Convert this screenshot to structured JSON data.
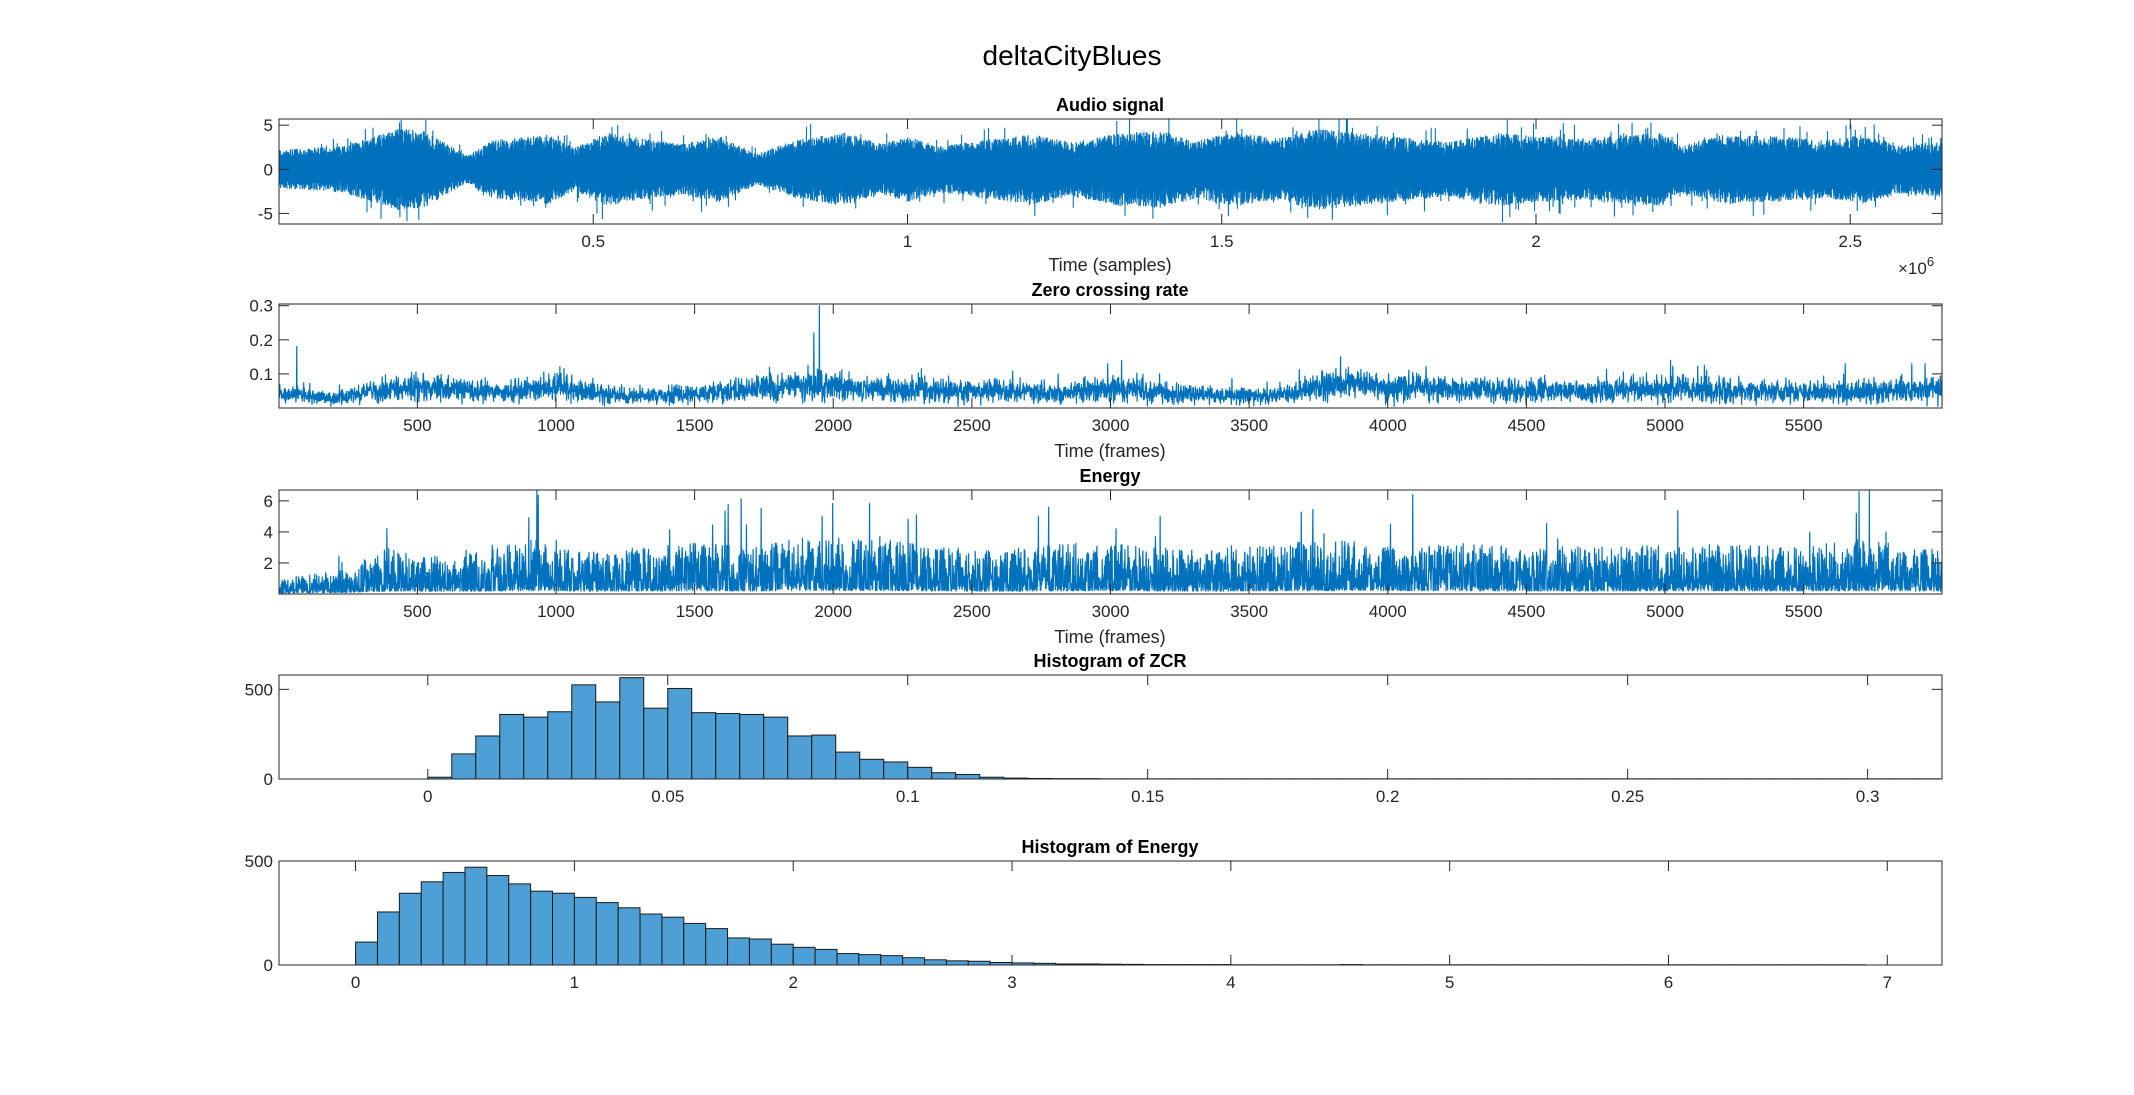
{
  "figure": {
    "title": "deltaCityBlues"
  },
  "colors": {
    "line": "#0072bd",
    "bar_fill": "#4d9fd6",
    "bar_edge": "#1a1a1a",
    "axes": "#262626"
  },
  "chart_data": [
    {
      "id": "audio",
      "type": "line",
      "title": "Audio signal",
      "xlabel": "Time (samples)",
      "ylabel": "",
      "xlim": [
        1,
        2646000
      ],
      "ylim": [
        -6.2,
        5.7
      ],
      "xticks": [
        500000,
        1000000,
        1500000,
        2000000,
        2500000
      ],
      "xtick_labels": [
        "0.5",
        "1",
        "1.5",
        "2",
        "2.5"
      ],
      "x_exponent": "×10",
      "x_exponent_power": "6",
      "yticks": [
        -5,
        0,
        5
      ],
      "ytick_labels": [
        "-5",
        "0",
        "5"
      ],
      "envelope": {
        "x": [
          0,
          100000,
          190000,
          230000,
          300000,
          340000,
          430000,
          470000,
          520000,
          640000,
          700000,
          760000,
          820000,
          900000,
          960000,
          1000000,
          1050000,
          1120000,
          1200000,
          1260000,
          1340000,
          1400000,
          1460000,
          1520000,
          1590000,
          1650000,
          1720000,
          1800000,
          1860000,
          1940000,
          2000000,
          2080000,
          2150000,
          2200000,
          2230000,
          2300000,
          2380000,
          2460000,
          2520000,
          2580000,
          2646000
        ],
        "amplitude": [
          2.0,
          2.4,
          4.2,
          4.0,
          1.4,
          3.0,
          3.6,
          2.2,
          3.8,
          2.6,
          3.4,
          1.6,
          3.0,
          3.8,
          2.6,
          3.4,
          2.4,
          3.0,
          3.6,
          2.8,
          3.8,
          4.0,
          3.0,
          3.8,
          3.2,
          4.2,
          3.8,
          3.2,
          2.8,
          3.8,
          3.4,
          3.2,
          3.6,
          3.8,
          2.4,
          3.6,
          3.4,
          3.0,
          3.6,
          2.6,
          2.8
        ]
      }
    },
    {
      "id": "zcr",
      "type": "line",
      "title": "Zero crossing rate",
      "xlabel": "Time (frames)",
      "ylabel": "",
      "xlim": [
        1,
        5999
      ],
      "ylim": [
        0,
        0.305
      ],
      "xticks": [
        500,
        1000,
        1500,
        2000,
        2500,
        3000,
        3500,
        4000,
        4500,
        5000,
        5500
      ],
      "xtick_labels": [
        "500",
        "1000",
        "1500",
        "2000",
        "2500",
        "3000",
        "3500",
        "4000",
        "4500",
        "5000",
        "5500"
      ],
      "yticks": [
        0.1,
        0.2,
        0.3
      ],
      "ytick_labels": [
        "0.1",
        "0.2",
        "0.3"
      ],
      "profile": {
        "x": [
          0,
          200,
          500,
          800,
          1000,
          1250,
          1500,
          1750,
          1950,
          2200,
          2500,
          2800,
          3000,
          3300,
          3600,
          3800,
          4000,
          4300,
          4600,
          5000,
          5300,
          5600,
          5999
        ],
        "level": [
          0.04,
          0.03,
          0.06,
          0.045,
          0.06,
          0.035,
          0.04,
          0.06,
          0.065,
          0.055,
          0.05,
          0.045,
          0.055,
          0.04,
          0.035,
          0.07,
          0.06,
          0.055,
          0.05,
          0.055,
          0.05,
          0.045,
          0.055
        ]
      },
      "peaks": [
        {
          "x": 65,
          "y": 0.18
        },
        {
          "x": 1950,
          "y": 0.3
        },
        {
          "x": 1930,
          "y": 0.22
        },
        {
          "x": 2990,
          "y": 0.13
        },
        {
          "x": 3040,
          "y": 0.14
        },
        {
          "x": 3830,
          "y": 0.15
        },
        {
          "x": 5020,
          "y": 0.14
        },
        {
          "x": 5650,
          "y": 0.13
        },
        {
          "x": 5890,
          "y": 0.13
        }
      ]
    },
    {
      "id": "energy",
      "type": "line",
      "title": "Energy",
      "xlabel": "Time (frames)",
      "ylabel": "",
      "xlim": [
        1,
        5999
      ],
      "ylim": [
        0,
        6.7
      ],
      "xticks": [
        500,
        1000,
        1500,
        2000,
        2500,
        3000,
        3500,
        4000,
        4500,
        5000,
        5500
      ],
      "xtick_labels": [
        "500",
        "1000",
        "1500",
        "2000",
        "2500",
        "3000",
        "3500",
        "4000",
        "4500",
        "5000",
        "5500"
      ],
      "yticks": [
        2,
        4,
        6
      ],
      "ytick_labels": [
        "2",
        "4",
        "6"
      ],
      "profile": {
        "x": [
          0,
          250,
          400,
          600,
          900,
          1200,
          1500,
          1700,
          1950,
          2300,
          2600,
          3000,
          3300,
          3600,
          3900,
          4100,
          4400,
          4800,
          5200,
          5500,
          5700,
          5999
        ],
        "level": [
          0.4,
          0.7,
          1.3,
          1.1,
          1.5,
          1.2,
          1.4,
          1.3,
          1.6,
          1.4,
          1.2,
          1.5,
          1.2,
          1.4,
          1.5,
          1.5,
          1.3,
          1.3,
          1.4,
          1.3,
          1.5,
          1.2
        ]
      },
      "peaks": [
        {
          "x": 1960,
          "y": 5.0
        },
        {
          "x": 2270,
          "y": 4.8
        },
        {
          "x": 2300,
          "y": 5.1
        },
        {
          "x": 3020,
          "y": 4.2
        },
        {
          "x": 4090,
          "y": 6.4
        },
        {
          "x": 4010,
          "y": 4.5
        },
        {
          "x": 5700,
          "y": 6.6
        },
        {
          "x": 5690,
          "y": 5.2
        },
        {
          "x": 390,
          "y": 4.2
        }
      ]
    },
    {
      "id": "hist_zcr",
      "type": "bar",
      "title": "Histogram of ZCR",
      "xlabel": "",
      "ylabel": "",
      "xlim": [
        -0.031,
        0.3155
      ],
      "ylim": [
        0,
        580
      ],
      "xticks": [
        0,
        0.05,
        0.1,
        0.15,
        0.2,
        0.25,
        0.3
      ],
      "xtick_labels": [
        "0",
        "0.05",
        "0.1",
        "0.15",
        "0.2",
        "0.25",
        "0.3"
      ],
      "yticks": [
        0,
        500
      ],
      "ytick_labels": [
        "0",
        "500"
      ],
      "bin_start": 0,
      "bin_width": 0.005,
      "counts": [
        10,
        140,
        240,
        360,
        345,
        375,
        525,
        430,
        565,
        395,
        505,
        370,
        365,
        360,
        345,
        240,
        245,
        150,
        110,
        95,
        65,
        35,
        25,
        10,
        5,
        3,
        2,
        2,
        1,
        1,
        1,
        1,
        1,
        1,
        1,
        1,
        1,
        1,
        1,
        1,
        1,
        1,
        1,
        1,
        1,
        1,
        1,
        1,
        1,
        1,
        1,
        1,
        1,
        1,
        1,
        1,
        1,
        1,
        1,
        1,
        1,
        1,
        1
      ]
    },
    {
      "id": "hist_energy",
      "type": "bar",
      "title": "Histogram of Energy",
      "xlabel": "",
      "ylabel": "",
      "xlim": [
        -0.35,
        7.25
      ],
      "ylim": [
        0,
        500
      ],
      "xticks": [
        0,
        1,
        2,
        3,
        4,
        5,
        6,
        7
      ],
      "xtick_labels": [
        "0",
        "1",
        "2",
        "3",
        "4",
        "5",
        "6",
        "7"
      ],
      "yticks": [
        0,
        500
      ],
      "ytick_labels": [
        "0",
        "500"
      ],
      "bin_start": 0,
      "bin_width": 0.1,
      "counts": [
        110,
        255,
        345,
        400,
        445,
        470,
        430,
        390,
        355,
        345,
        325,
        300,
        275,
        245,
        230,
        200,
        175,
        130,
        125,
        100,
        85,
        75,
        55,
        50,
        45,
        35,
        25,
        20,
        18,
        12,
        10,
        8,
        5,
        5,
        4,
        3,
        2,
        2,
        2,
        2,
        1,
        1,
        1,
        1,
        1,
        2,
        1,
        1,
        1,
        1,
        1,
        1,
        1,
        1,
        1,
        1,
        1,
        1,
        1,
        1,
        1,
        1,
        1,
        1,
        1,
        1,
        1,
        1,
        1
      ]
    }
  ]
}
